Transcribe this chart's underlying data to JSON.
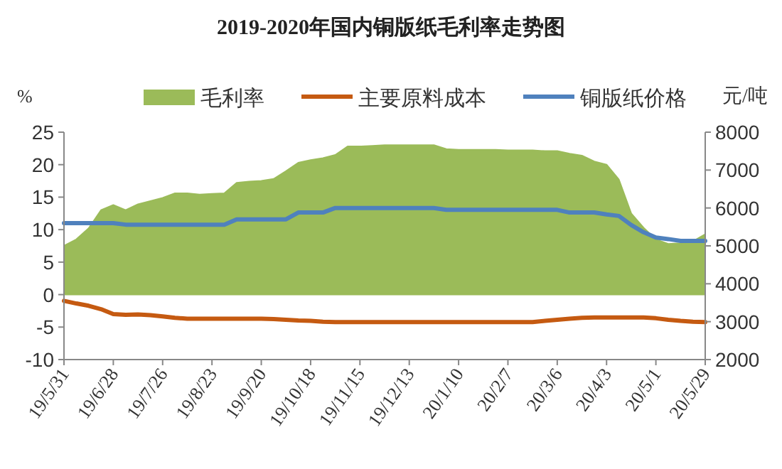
{
  "chart_data": {
    "type": "line",
    "title": "2019-2020年国内铜版纸毛利率走势图",
    "ylabel": "%",
    "y2label": "元/吨",
    "legend": "top",
    "categories": [
      "19/5/31",
      null,
      null,
      null,
      "19/6/28",
      null,
      null,
      null,
      "19/7/26",
      null,
      null,
      null,
      "19/8/23",
      null,
      null,
      null,
      "19/9/20",
      null,
      null,
      null,
      "19/10/18",
      null,
      null,
      null,
      "19/11/15",
      null,
      null,
      null,
      "19/12/13",
      null,
      null,
      null,
      "20/1/10",
      null,
      null,
      null,
      "20/2/7",
      null,
      null,
      null,
      "20/3/6",
      null,
      null,
      null,
      "20/4/3",
      null,
      null,
      null,
      "20/5/1",
      null,
      null,
      null,
      "20/5/29"
    ],
    "series": [
      {
        "name": "毛利率",
        "type": "area",
        "axis": "y",
        "color": "#9bbb59",
        "values": [
          7.5,
          8.5,
          10.2,
          13.0,
          13.8,
          13.0,
          13.9,
          14.4,
          14.9,
          15.6,
          15.6,
          15.4,
          15.5,
          15.6,
          17.2,
          17.4,
          17.5,
          17.8,
          19.0,
          20.3,
          20.7,
          21.0,
          21.5,
          22.8,
          22.8,
          22.9,
          23.0,
          23.0,
          23.0,
          23.0,
          23.0,
          22.4,
          22.3,
          22.3,
          22.3,
          22.3,
          22.2,
          22.2,
          22.2,
          22.1,
          22.1,
          21.7,
          21.4,
          20.5,
          20.0,
          17.7,
          12.5,
          10.3,
          8.5,
          7.8,
          7.9,
          8.2,
          9.3
        ]
      },
      {
        "name": "主要原料成本",
        "type": "line",
        "axis": "y2",
        "color": "#c55a11",
        "values": [
          3550,
          3480,
          3420,
          3330,
          3200,
          3180,
          3190,
          3170,
          3140,
          3100,
          3080,
          3080,
          3080,
          3080,
          3080,
          3080,
          3080,
          3070,
          3050,
          3030,
          3020,
          3000,
          2990,
          2990,
          2990,
          2990,
          2990,
          2990,
          2990,
          2990,
          2990,
          2990,
          2990,
          2990,
          2990,
          2990,
          2990,
          2990,
          2990,
          3020,
          3050,
          3080,
          3100,
          3110,
          3110,
          3110,
          3110,
          3110,
          3090,
          3050,
          3020,
          3000,
          2990
        ]
      },
      {
        "name": "铜版纸价格",
        "type": "line",
        "axis": "y2",
        "color": "#4f81bd",
        "values": [
          5600,
          5600,
          5600,
          5600,
          5600,
          5560,
          5560,
          5560,
          5560,
          5560,
          5560,
          5560,
          5560,
          5560,
          5700,
          5700,
          5700,
          5700,
          5700,
          5880,
          5880,
          5880,
          6000,
          6000,
          6000,
          6000,
          6000,
          6000,
          6000,
          6000,
          6000,
          5950,
          5950,
          5950,
          5950,
          5950,
          5950,
          5950,
          5950,
          5950,
          5950,
          5880,
          5880,
          5880,
          5830,
          5790,
          5550,
          5360,
          5220,
          5180,
          5130,
          5130,
          5130
        ]
      }
    ],
    "ylim": [
      -10,
      25
    ],
    "yticks": [
      -10,
      -5,
      0,
      5,
      10,
      15,
      20,
      25
    ],
    "y2lim": [
      2000,
      8000
    ],
    "y2ticks": [
      2000,
      3000,
      4000,
      5000,
      6000,
      7000,
      8000
    ]
  }
}
